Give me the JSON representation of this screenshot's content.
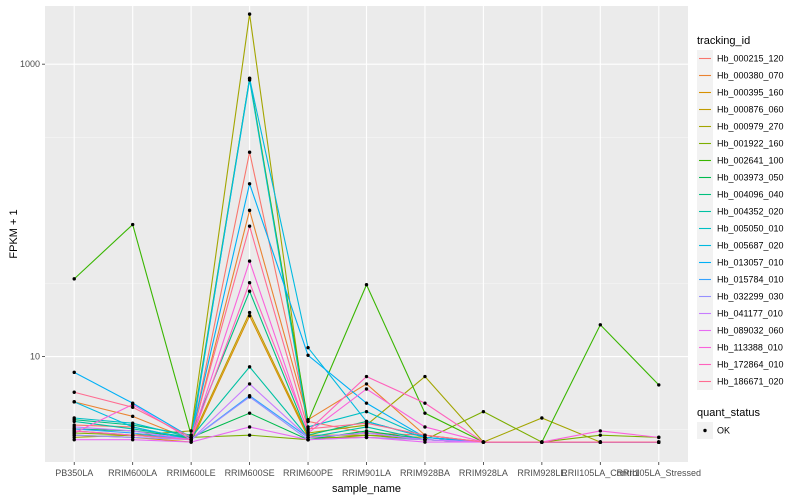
{
  "chart_data": {
    "type": "line",
    "xlabel": "sample_name",
    "ylabel": "FPKM + 1",
    "yscale": "log10",
    "ylim": [
      1.9,
      2500
    ],
    "yticks": [
      10,
      1000
    ],
    "ytick_labels": [
      "10",
      "1000"
    ],
    "grid": true,
    "legend_position": "right",
    "categories": [
      "PB350LA",
      "RRIM600LA",
      "RRIM600LE",
      "RRIM600SE",
      "RRIM600PE",
      "RRIM901LA",
      "RRIM928BA",
      "RRIM928LA",
      "RRIM928LE",
      "RRII105LA_Control",
      "RRII105LA_Stressed"
    ],
    "legend_color": {
      "title": "tracking_id",
      "entries": [
        "Hb_000215_120",
        "Hb_000380_070",
        "Hb_000395_160",
        "Hb_000876_060",
        "Hb_000979_270",
        "Hb_001922_160",
        "Hb_002641_100",
        "Hb_003973_050",
        "Hb_004096_040",
        "Hb_004352_020",
        "Hb_005050_010",
        "Hb_005687_020",
        "Hb_013057_010",
        "Hb_015784_010",
        "Hb_032299_030",
        "Hb_041177_010",
        "Hb_089032_060",
        "Hb_113388_010",
        "Hb_172864_010",
        "Hb_186671_020"
      ]
    },
    "legend_shape": {
      "title": "quant_status",
      "entries": [
        "OK"
      ]
    },
    "series": [
      {
        "name": "Hb_000215_120",
        "color": "#F8766D",
        "values": [
          3.4,
          3.3,
          2.7,
          250,
          3.6,
          3.0,
          2.9,
          2.6,
          2.6,
          2.6,
          2.6
        ]
      },
      {
        "name": "Hb_000380_070",
        "color": "#EA8331",
        "values": [
          4.9,
          3.9,
          2.7,
          100,
          3.7,
          6.5,
          2.9,
          2.6,
          2.6,
          2.6,
          2.6
        ]
      },
      {
        "name": "Hb_000395_160",
        "color": "#D89000",
        "values": [
          2.9,
          2.8,
          2.6,
          19,
          2.8,
          2.8,
          2.7,
          2.6,
          2.6,
          2.6,
          2.6
        ]
      },
      {
        "name": "Hb_000876_060",
        "color": "#C09B00",
        "values": [
          3.1,
          2.9,
          2.7,
          20,
          2.9,
          2.9,
          2.8,
          2.6,
          2.6,
          2.6,
          2.6
        ]
      },
      {
        "name": "Hb_000979_270",
        "color": "#A3A500",
        "values": [
          2.8,
          2.9,
          3.1,
          2200,
          3.0,
          3.4,
          7.3,
          2.6,
          3.8,
          2.6,
          2.6
        ]
      },
      {
        "name": "Hb_001922_160",
        "color": "#7CAE00",
        "values": [
          3.0,
          2.9,
          2.8,
          2.9,
          2.7,
          2.9,
          2.7,
          4.2,
          2.6,
          2.9,
          2.8
        ]
      },
      {
        "name": "Hb_002641_100",
        "color": "#39B600",
        "values": [
          34,
          80,
          2.9,
          800,
          3.6,
          31,
          4.1,
          2.6,
          2.6,
          16.5,
          6.4
        ]
      },
      {
        "name": "Hb_003973_050",
        "color": "#00BB4E",
        "values": [
          3.2,
          3.1,
          2.8,
          4.1,
          2.7,
          3.1,
          2.7,
          2.6,
          2.6,
          2.6,
          2.6
        ]
      },
      {
        "name": "Hb_004096_040",
        "color": "#00BF7D",
        "values": [
          3.7,
          3.4,
          2.9,
          28,
          2.9,
          3.6,
          2.8,
          2.6,
          2.6,
          2.6,
          2.6
        ]
      },
      {
        "name": "Hb_004352_020",
        "color": "#00C1A3",
        "values": [
          3.6,
          3.2,
          2.8,
          8.5,
          2.8,
          3.3,
          2.7,
          2.6,
          2.6,
          2.6,
          2.6
        ]
      },
      {
        "name": "Hb_005050_010",
        "color": "#00BFC4",
        "values": [
          3.8,
          3.5,
          2.8,
          780,
          3.3,
          4.2,
          2.8,
          2.6,
          2.6,
          2.6,
          2.6
        ]
      },
      {
        "name": "Hb_005687_020",
        "color": "#00BAE0",
        "values": [
          4.9,
          3.3,
          2.7,
          800,
          11.5,
          3.6,
          2.8,
          2.6,
          2.6,
          2.6,
          2.6
        ]
      },
      {
        "name": "Hb_013057_010",
        "color": "#00B0F6",
        "values": [
          7.8,
          4.8,
          2.8,
          152,
          10.2,
          4.8,
          2.8,
          2.6,
          2.6,
          2.6,
          2.6
        ]
      },
      {
        "name": "Hb_015784_010",
        "color": "#35A2FF",
        "values": [
          3.2,
          3.0,
          2.7,
          5.4,
          2.8,
          3.0,
          2.7,
          2.6,
          2.6,
          2.6,
          2.6
        ]
      },
      {
        "name": "Hb_032299_030",
        "color": "#9590FF",
        "values": [
          2.9,
          2.8,
          2.7,
          5.3,
          2.7,
          2.8,
          2.7,
          2.6,
          2.6,
          2.6,
          2.6
        ]
      },
      {
        "name": "Hb_041177_010",
        "color": "#C77CFF",
        "values": [
          3.3,
          3.1,
          2.7,
          6.5,
          2.8,
          3.0,
          2.7,
          2.6,
          2.6,
          2.6,
          2.6
        ]
      },
      {
        "name": "Hb_089032_060",
        "color": "#E76BF3",
        "values": [
          2.7,
          2.7,
          2.6,
          3.3,
          2.7,
          2.8,
          2.6,
          2.6,
          2.6,
          2.6,
          2.6
        ]
      },
      {
        "name": "Hb_113388_010",
        "color": "#FA62DB",
        "values": [
          3.0,
          4.7,
          2.7,
          45,
          3.0,
          6.0,
          3.3,
          2.6,
          2.6,
          3.1,
          2.8
        ]
      },
      {
        "name": "Hb_172864_010",
        "color": "#FF62BC",
        "values": [
          3.1,
          2.9,
          2.7,
          32,
          3.1,
          7.3,
          4.8,
          2.6,
          2.6,
          2.6,
          2.6
        ]
      },
      {
        "name": "Hb_186671_020",
        "color": "#FF6C91",
        "values": [
          5.7,
          4.5,
          2.8,
          78,
          3.2,
          3.5,
          2.9,
          2.6,
          2.6,
          2.6,
          2.6
        ]
      }
    ]
  }
}
